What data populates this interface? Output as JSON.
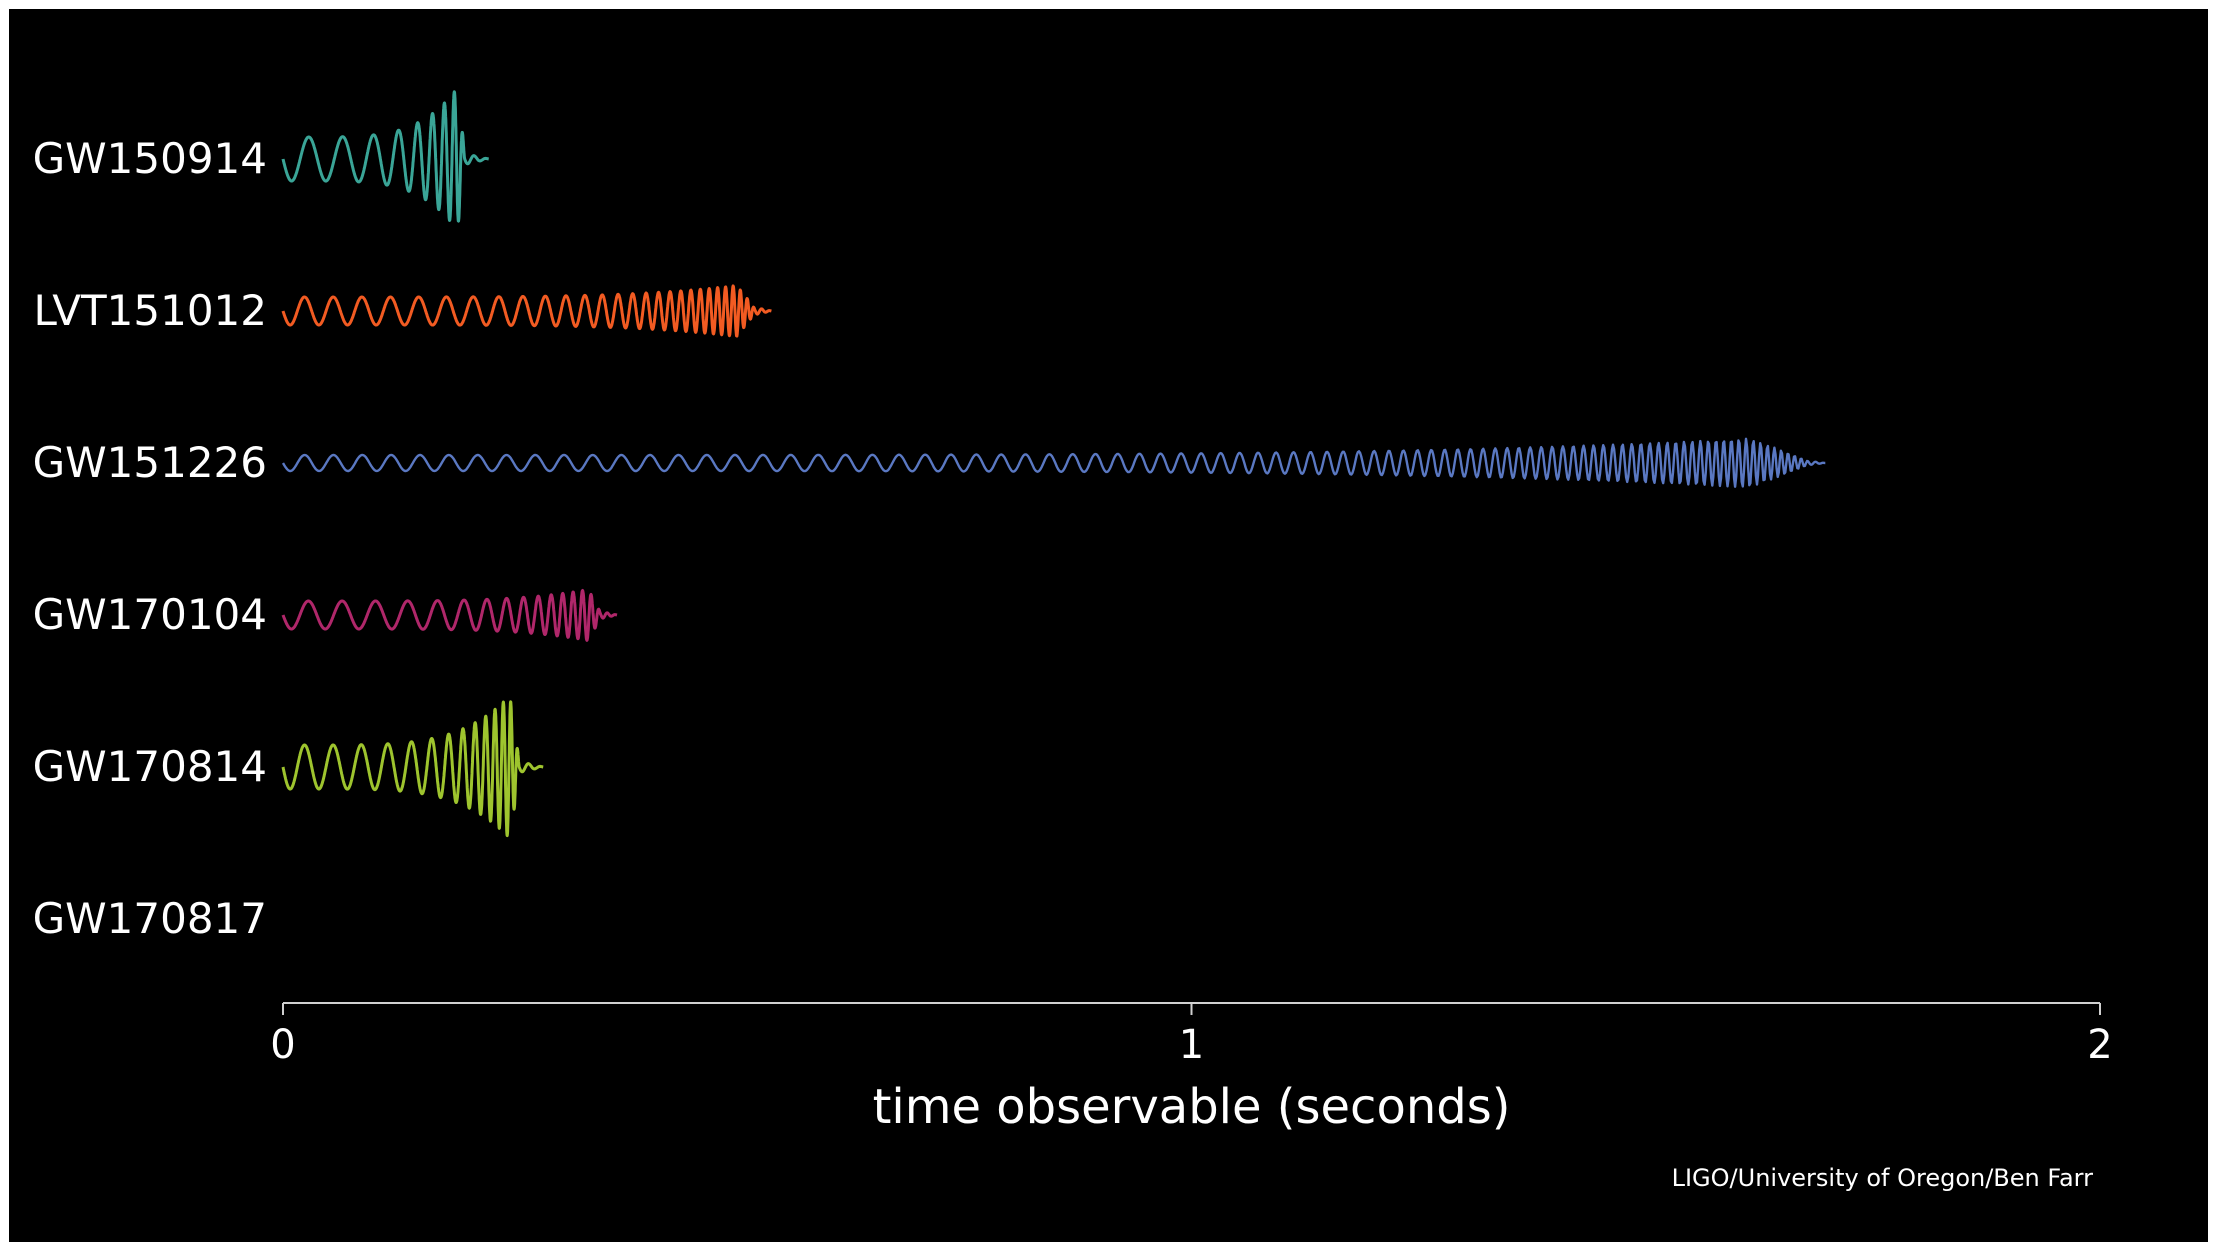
{
  "chart_data": {
    "type": "line",
    "xlabel": "time observable (seconds)",
    "xlim": [
      0,
      2
    ],
    "xticks": [
      "0",
      "1",
      "2"
    ],
    "grid": false,
    "credit": "LIGO/University of Oregon/Ben Farr",
    "series": [
      {
        "name": "GW150914",
        "duration": 0.2,
        "cycles": 9,
        "color": "#3aa597"
      },
      {
        "name": "LVT151012",
        "duration": 0.52,
        "cycles": 28,
        "color": "#f25b22"
      },
      {
        "name": "GW151226",
        "duration": 1.68,
        "cycles": 90,
        "color": "#5a78c2"
      },
      {
        "name": "GW170104",
        "duration": 0.35,
        "cycles": 16,
        "color": "#b0276a"
      },
      {
        "name": "GW170814",
        "duration": 0.26,
        "cycles": 14,
        "color": "#9ec42e"
      },
      {
        "name": "GW170817",
        "duration": null,
        "cycles": 0,
        "color": "#ffffff"
      }
    ]
  }
}
